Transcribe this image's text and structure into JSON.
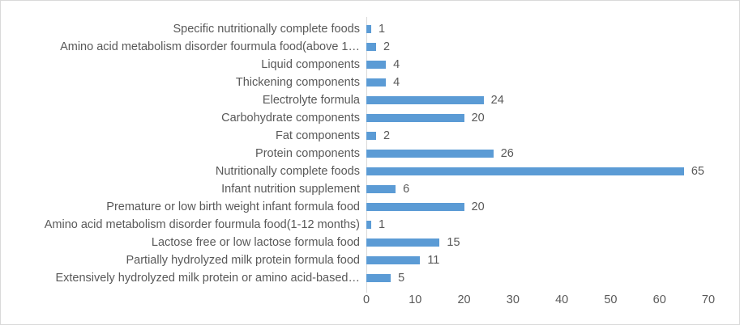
{
  "window": {
    "background": "#FFFFFF",
    "border_color": "#D9D9D9"
  },
  "chart_data": {
    "type": "bar",
    "orientation": "horizontal",
    "title": "",
    "xlabel": "",
    "ylabel": "",
    "categories": [
      "Specific nutritionally complete foods",
      "Amino acid metabolism disorder fourmula food(above 1…",
      "Liquid components",
      "Thickening components",
      "Electrolyte formula",
      "Carbohydrate components",
      "Fat components",
      "Protein components",
      "Nutritionally complete foods",
      "Infant nutrition supplement",
      "Premature or low birth weight infant formula food",
      "Amino acid metabolism disorder fourmula food(1-12 months)",
      "Lactose free  or low lactose formula food",
      "Partially hydrolyzed milk protein formula food",
      "Extensively hydrolyzed milk protein  or amino acid-based…"
    ],
    "values": [
      1,
      2,
      4,
      4,
      24,
      20,
      2,
      26,
      65,
      6,
      20,
      1,
      15,
      11,
      5
    ],
    "value_labels_shown": true,
    "x_ticks": [
      "0",
      "10",
      "20",
      "30",
      "40",
      "50",
      "60",
      "70"
    ],
    "xlim": [
      0,
      70
    ],
    "grid": "off",
    "legend": "none",
    "bar_color": "#5B9BD5",
    "text_color": "#595959",
    "axis_line_color": "#D9D9D9"
  }
}
